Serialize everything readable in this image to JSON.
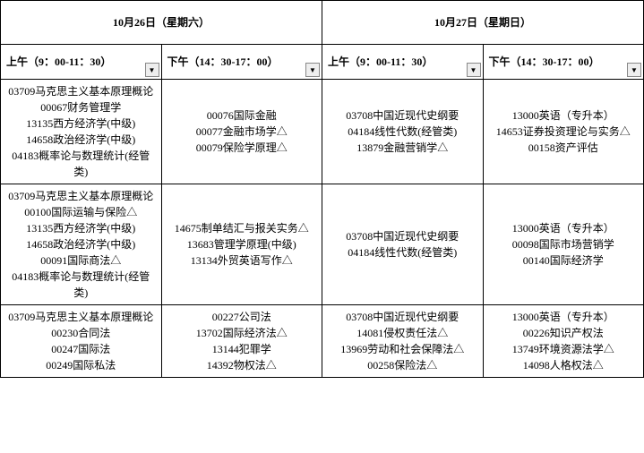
{
  "days": [
    {
      "label": "10月26日（星期六）"
    },
    {
      "label": "10月27日（星期日）"
    }
  ],
  "sessions": [
    {
      "label": "上午（9：00-11：30）"
    },
    {
      "label": "下午（14：30-17：00）"
    },
    {
      "label": "上午（9：00-11：30）"
    },
    {
      "label": "下午（14：30-17：00）"
    }
  ],
  "rows": [
    {
      "cols": [
        {
          "lines": [
            "03709马克思主义基本原理概论",
            "00067财务管理学",
            "13135西方经济学(中级)",
            "14658政治经济学(中级)",
            "04183概率论与数理统计(经管",
            "类)"
          ]
        },
        {
          "lines": [
            "00076国际金融",
            "00077金融市场学△",
            "00079保险学原理△"
          ]
        },
        {
          "lines": [
            "03708中国近现代史纲要",
            "04184线性代数(经管类)",
            "13879金融营销学△"
          ]
        },
        {
          "lines": [
            "13000英语（专升本）",
            "14653证券投资理论与实务△",
            "00158资产评估"
          ]
        }
      ]
    },
    {
      "cols": [
        {
          "lines": [
            "03709马克思主义基本原理概论",
            "00100国际运输与保险△",
            "13135西方经济学(中级)",
            "14658政治经济学(中级)",
            "00091国际商法△",
            "04183概率论与数理统计(经管",
            "类)"
          ]
        },
        {
          "lines": [
            "14675制单结汇与报关实务△",
            "13683管理学原理(中级)",
            "13134外贸英语写作△"
          ]
        },
        {
          "lines": [
            "03708中国近现代史纲要",
            "04184线性代数(经管类)"
          ]
        },
        {
          "lines": [
            "13000英语（专升本）",
            "00098国际市场营销学",
            "00140国际经济学"
          ]
        }
      ]
    },
    {
      "cols": [
        {
          "lines": [
            "03709马克思主义基本原理概论",
            "00230合同法",
            "00247国际法",
            "00249国际私法"
          ]
        },
        {
          "lines": [
            "00227公司法",
            "13702国际经济法△",
            "13144犯罪学",
            "14392物权法△"
          ]
        },
        {
          "lines": [
            "03708中国近现代史纲要",
            "14081侵权责任法△",
            "13969劳动和社会保障法△",
            "00258保险法△"
          ]
        },
        {
          "lines": [
            "13000英语（专升本）",
            "00226知识产权法",
            "13749环境资源法学△",
            "14098人格权法△"
          ]
        }
      ]
    }
  ]
}
